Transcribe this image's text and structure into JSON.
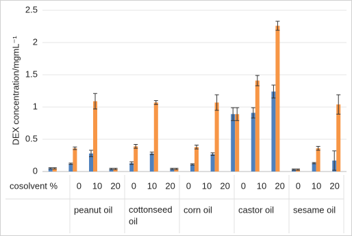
{
  "chart_data": {
    "type": "bar",
    "y_label": "DEX concentration/mgmL⁻¹",
    "x_row_label": "cosolvent %",
    "categories": [
      "0",
      "10",
      "20",
      "0",
      "10",
      "20",
      "0",
      "10",
      "20",
      "0",
      "10",
      "20",
      "0",
      "10",
      "20"
    ],
    "groups": [
      "peanut oil",
      "cottonseed oil",
      "corn oil",
      "castor oil",
      "sesame oil"
    ],
    "series": [
      {
        "color": "#4f81bd",
        "values": [
          0.05,
          0.12,
          0.28,
          0.04,
          0.13,
          0.28,
          0.04,
          0.11,
          0.27,
          0.89,
          0.91,
          1.24,
          0.03,
          0.13,
          0.17
        ],
        "errors": [
          0.01,
          0.01,
          0.05,
          0.01,
          0.02,
          0.02,
          0.01,
          0.01,
          0.02,
          0.1,
          0.08,
          0.1,
          0.01,
          0.01,
          0.15
        ]
      },
      {
        "color": "#f79646",
        "values": [
          0.05,
          0.36,
          1.09,
          0.04,
          0.39,
          1.07,
          0.04,
          0.38,
          1.07,
          0.89,
          1.41,
          2.26,
          0.03,
          0.36,
          1.04
        ],
        "errors": [
          0.01,
          0.02,
          0.12,
          0.01,
          0.03,
          0.03,
          0.01,
          0.03,
          0.12,
          0.1,
          0.08,
          0.07,
          0.01,
          0.03,
          0.15
        ]
      }
    ],
    "ylim": [
      0,
      2.5
    ],
    "yticks": [
      0,
      0.5,
      1,
      1.5,
      2,
      2.5
    ],
    "grid": true
  }
}
